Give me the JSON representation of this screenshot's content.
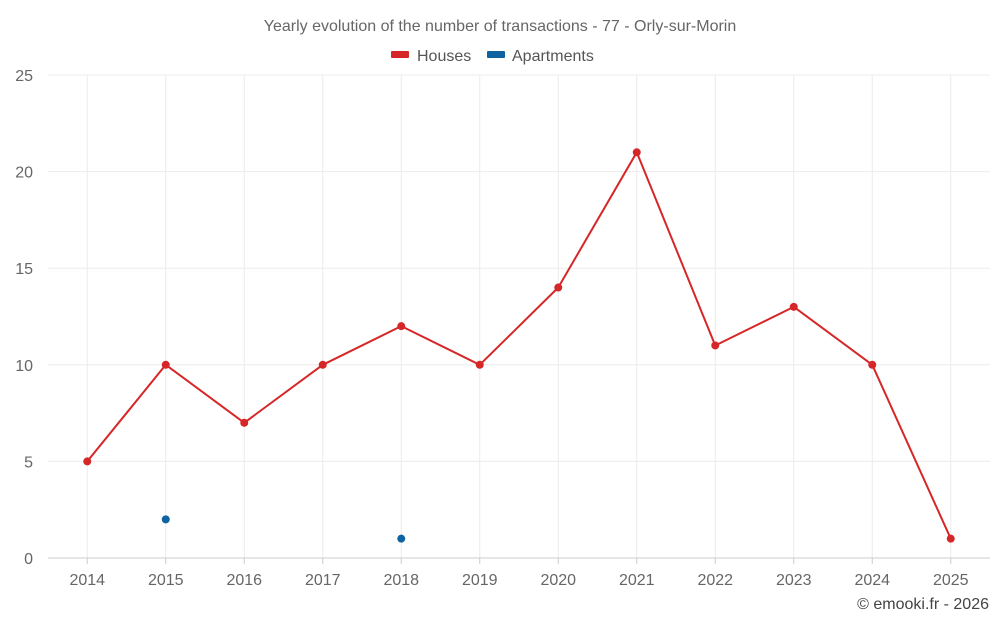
{
  "chart_data": {
    "type": "line",
    "title": "Yearly evolution of the number of transactions - 77 - Orly-sur-Morin",
    "categories": [
      "2014",
      "2015",
      "2016",
      "2017",
      "2018",
      "2019",
      "2020",
      "2021",
      "2022",
      "2023",
      "2024",
      "2025"
    ],
    "series": [
      {
        "name": "Houses",
        "color": "#d62728",
        "values": [
          5,
          10,
          7,
          10,
          12,
          10,
          14,
          21,
          11,
          13,
          10,
          1
        ]
      },
      {
        "name": "Apartments",
        "color": "#0f63a0",
        "values": [
          null,
          2,
          null,
          null,
          1,
          null,
          null,
          null,
          null,
          null,
          null,
          null
        ]
      }
    ],
    "ylim": [
      0,
      25
    ],
    "yticks": [
      "0",
      "5",
      "10",
      "15",
      "20",
      "25"
    ],
    "grid": true,
    "legend": "top-center"
  },
  "credit": "© emooki.fr - 2026"
}
